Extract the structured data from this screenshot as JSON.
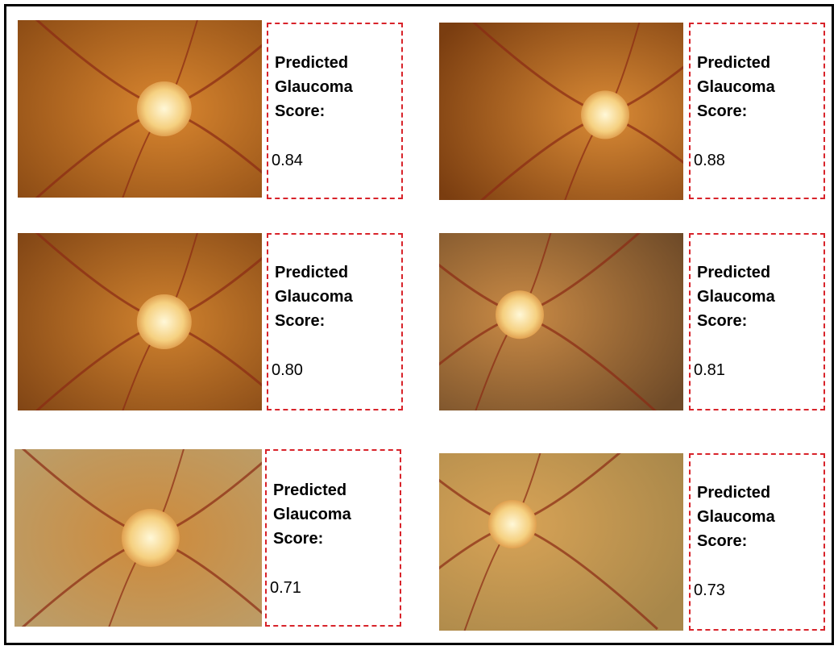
{
  "panels": [
    {
      "label": [
        "Predicted",
        "Glaucoma",
        "Score:"
      ],
      "score": "0.84"
    },
    {
      "label": [
        "Predicted",
        "Glaucoma",
        "Score:"
      ],
      "score": "0.88"
    },
    {
      "label": [
        "Predicted",
        "Glaucoma",
        "Score:"
      ],
      "score": "0.80"
    },
    {
      "label": [
        "Predicted",
        "Glaucoma",
        "Score:"
      ],
      "score": "0.81"
    },
    {
      "label": [
        "Predicted",
        "Glaucoma",
        "Score:"
      ],
      "score": "0.71"
    },
    {
      "label": [
        "Predicted",
        "Glaucoma",
        "Score:"
      ],
      "score": "0.73"
    }
  ]
}
